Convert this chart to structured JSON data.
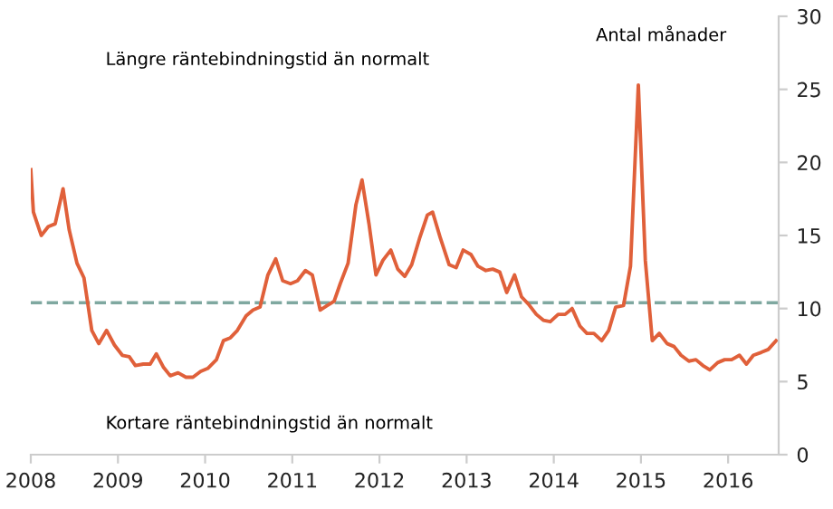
{
  "chart_data": {
    "type": "line",
    "ylabel": "Antal månader",
    "annotations": [
      "Längre räntebindningstid än normalt",
      "Kortare räntebindningstid än normalt"
    ],
    "x": [
      2008.0,
      2008.03,
      2008.12,
      2008.2,
      2008.28,
      2008.37,
      2008.44,
      2008.53,
      2008.61,
      2008.7,
      2008.78,
      2008.87,
      2008.96,
      2009.05,
      2009.13,
      2009.2,
      2009.29,
      2009.37,
      2009.44,
      2009.52,
      2009.6,
      2009.69,
      2009.78,
      2009.86,
      2009.95,
      2010.03,
      2010.13,
      2010.21,
      2010.29,
      2010.37,
      2010.47,
      2010.55,
      2010.63,
      2010.72,
      2010.81,
      2010.89,
      2010.98,
      2011.06,
      2011.15,
      2011.23,
      2011.32,
      2011.4,
      2011.48,
      2011.55,
      2011.64,
      2011.73,
      2011.8,
      2011.88,
      2011.96,
      2012.04,
      2012.13,
      2012.21,
      2012.29,
      2012.37,
      2012.46,
      2012.55,
      2012.61,
      2012.7,
      2012.8,
      2012.88,
      2012.96,
      2013.05,
      2013.13,
      2013.22,
      2013.3,
      2013.38,
      2013.46,
      2013.55,
      2013.63,
      2013.71,
      2013.8,
      2013.88,
      2013.96,
      2014.05,
      2014.13,
      2014.21,
      2014.3,
      2014.38,
      2014.46,
      2014.55,
      2014.63,
      2014.71,
      2014.8,
      2014.88,
      2014.97,
      2015.05,
      2015.13,
      2015.21,
      2015.3,
      2015.38,
      2015.46,
      2015.55,
      2015.63,
      2015.71,
      2015.79,
      2015.88,
      2015.96,
      2016.04,
      2016.13,
      2016.21,
      2016.29,
      2016.38,
      2016.46,
      2016.55
    ],
    "series": [
      {
        "color": "#e0603a",
        "values": [
          19.5,
          16.6,
          15.0,
          15.6,
          15.8,
          18.2,
          15.4,
          13.1,
          12.1,
          8.5,
          7.6,
          8.5,
          7.5,
          6.8,
          6.7,
          6.1,
          6.2,
          6.2,
          6.9,
          6.0,
          5.4,
          5.6,
          5.3,
          5.3,
          5.7,
          5.9,
          6.5,
          7.8,
          8.0,
          8.5,
          9.5,
          9.9,
          10.1,
          12.3,
          13.4,
          11.9,
          11.7,
          11.9,
          12.6,
          12.3,
          9.9,
          10.2,
          10.5,
          11.7,
          13.1,
          17.1,
          18.8,
          15.8,
          12.3,
          13.3,
          14.0,
          12.7,
          12.2,
          13.0,
          14.8,
          16.4,
          16.6,
          14.8,
          13.0,
          12.8,
          14.0,
          13.7,
          12.9,
          12.6,
          12.7,
          12.5,
          11.1,
          12.3,
          10.8,
          10.3,
          9.6,
          9.2,
          9.1,
          9.6,
          9.6,
          10.0,
          8.8,
          8.3,
          8.3,
          7.8,
          8.5,
          10.1,
          10.2,
          12.9,
          25.3,
          13.3,
          7.8,
          8.3,
          7.6,
          7.4,
          6.8,
          6.4,
          6.5,
          6.1,
          5.8,
          6.3,
          6.5,
          6.5,
          6.8,
          6.2,
          6.8,
          7.0,
          7.2,
          7.8
        ]
      }
    ],
    "xlim": [
      2008,
      2016.58
    ],
    "xticks": [
      2008,
      2009,
      2010,
      2011,
      2012,
      2013,
      2014,
      2015,
      2016
    ],
    "ylim": [
      0,
      30
    ],
    "yticks": [
      0,
      5,
      10,
      15,
      20,
      25,
      30
    ],
    "ref_lines": [
      {
        "axis": "y",
        "value": 10.4,
        "color": "#7fa8a0",
        "line_style": "dashed"
      }
    ],
    "grid": false,
    "legend": false,
    "marker": "none",
    "line_style": "solid"
  }
}
